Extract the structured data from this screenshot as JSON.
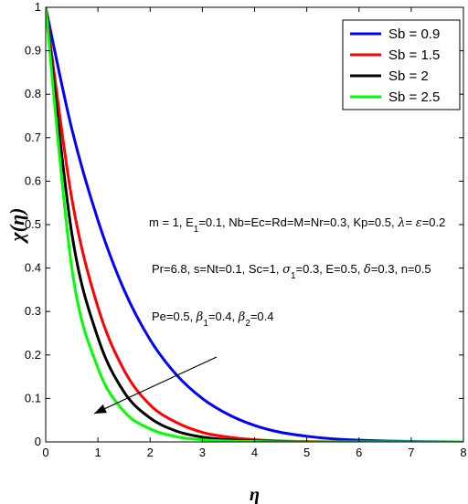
{
  "chart_data": {
    "type": "line",
    "title": "",
    "xlabel": "η",
    "ylabel": "χ(η)",
    "xlim": [
      0,
      8
    ],
    "ylim": [
      0,
      1
    ],
    "grid": false,
    "legend_position": "top-right",
    "x_ticks": [
      "0",
      "1",
      "2",
      "3",
      "4",
      "5",
      "6",
      "7",
      "8"
    ],
    "y_ticks": [
      "0",
      "0.1",
      "0.2",
      "0.3",
      "0.4",
      "0.5",
      "0.6",
      "0.7",
      "0.8",
      "0.9",
      "1"
    ],
    "x": [
      0,
      0.5,
      1,
      1.5,
      2,
      2.5,
      3,
      3.5,
      4,
      4.5,
      5,
      5.5,
      6,
      6.5,
      7,
      7.5,
      8
    ],
    "series": [
      {
        "name": "Sb = 0.9",
        "color": "#0000ff",
        "values": [
          1.0,
          0.72,
          0.51,
          0.35,
          0.235,
          0.155,
          0.1,
          0.063,
          0.038,
          0.022,
          0.013,
          0.007,
          0.004,
          0.002,
          0.001,
          0.0005,
          0.0
        ]
      },
      {
        "name": "Sb = 1.5",
        "color": "#ff0000",
        "values": [
          1.0,
          0.56,
          0.31,
          0.165,
          0.085,
          0.045,
          0.022,
          0.011,
          0.005,
          0.002,
          0.001,
          0.0005,
          0.0,
          0.0,
          0.0,
          0.0,
          0.0
        ]
      },
      {
        "name": "Sb = 2",
        "color": "#000000",
        "values": [
          1.0,
          0.48,
          0.24,
          0.115,
          0.055,
          0.025,
          0.011,
          0.005,
          0.002,
          0.001,
          0.0,
          0.0,
          0.0,
          0.0,
          0.0,
          0.0,
          0.0
        ]
      },
      {
        "name": "Sb = 2.5",
        "color": "#00ff00",
        "values": [
          1.0,
          0.4,
          0.17,
          0.07,
          0.03,
          0.012,
          0.005,
          0.002,
          0.001,
          0.0,
          0.0,
          0.0,
          0.0,
          0.0,
          0.0,
          0.0,
          0.0
        ]
      }
    ],
    "annotations": [
      {
        "id": "params1",
        "parts": [
          [
            "m = 1, E",
            ""
          ],
          [
            "1",
            "sub"
          ],
          [
            "=0.1, Nb=Ec=Rd=M=Nr=0.3, Kp=0.5, ",
            ""
          ],
          [
            "λ",
            "it"
          ],
          [
            "= ",
            ""
          ],
          [
            "ε",
            "it"
          ],
          [
            "=0.2",
            ""
          ]
        ]
      },
      {
        "id": "params2",
        "parts": [
          [
            "Pr=6.8, s=Nt=0.1, Sc=1, ",
            ""
          ],
          [
            "σ",
            "it"
          ],
          [
            "1",
            "sub"
          ],
          [
            "=0.3, E=0.5, ",
            ""
          ],
          [
            "δ",
            "it"
          ],
          [
            "=0.3, n=0.5",
            ""
          ]
        ]
      },
      {
        "id": "params3",
        "parts": [
          [
            "Pe=0.5, ",
            ""
          ],
          [
            "β",
            "it"
          ],
          [
            "1",
            "sub"
          ],
          [
            "=0.4, ",
            ""
          ],
          [
            "β",
            "it"
          ],
          [
            "2",
            "sub"
          ],
          [
            "=0.4",
            ""
          ]
        ]
      }
    ],
    "arrow": {
      "direction": "increasing Sb",
      "from": [
        7.5,
        0.19
      ],
      "to": [
        0.9,
        0.065
      ]
    }
  }
}
